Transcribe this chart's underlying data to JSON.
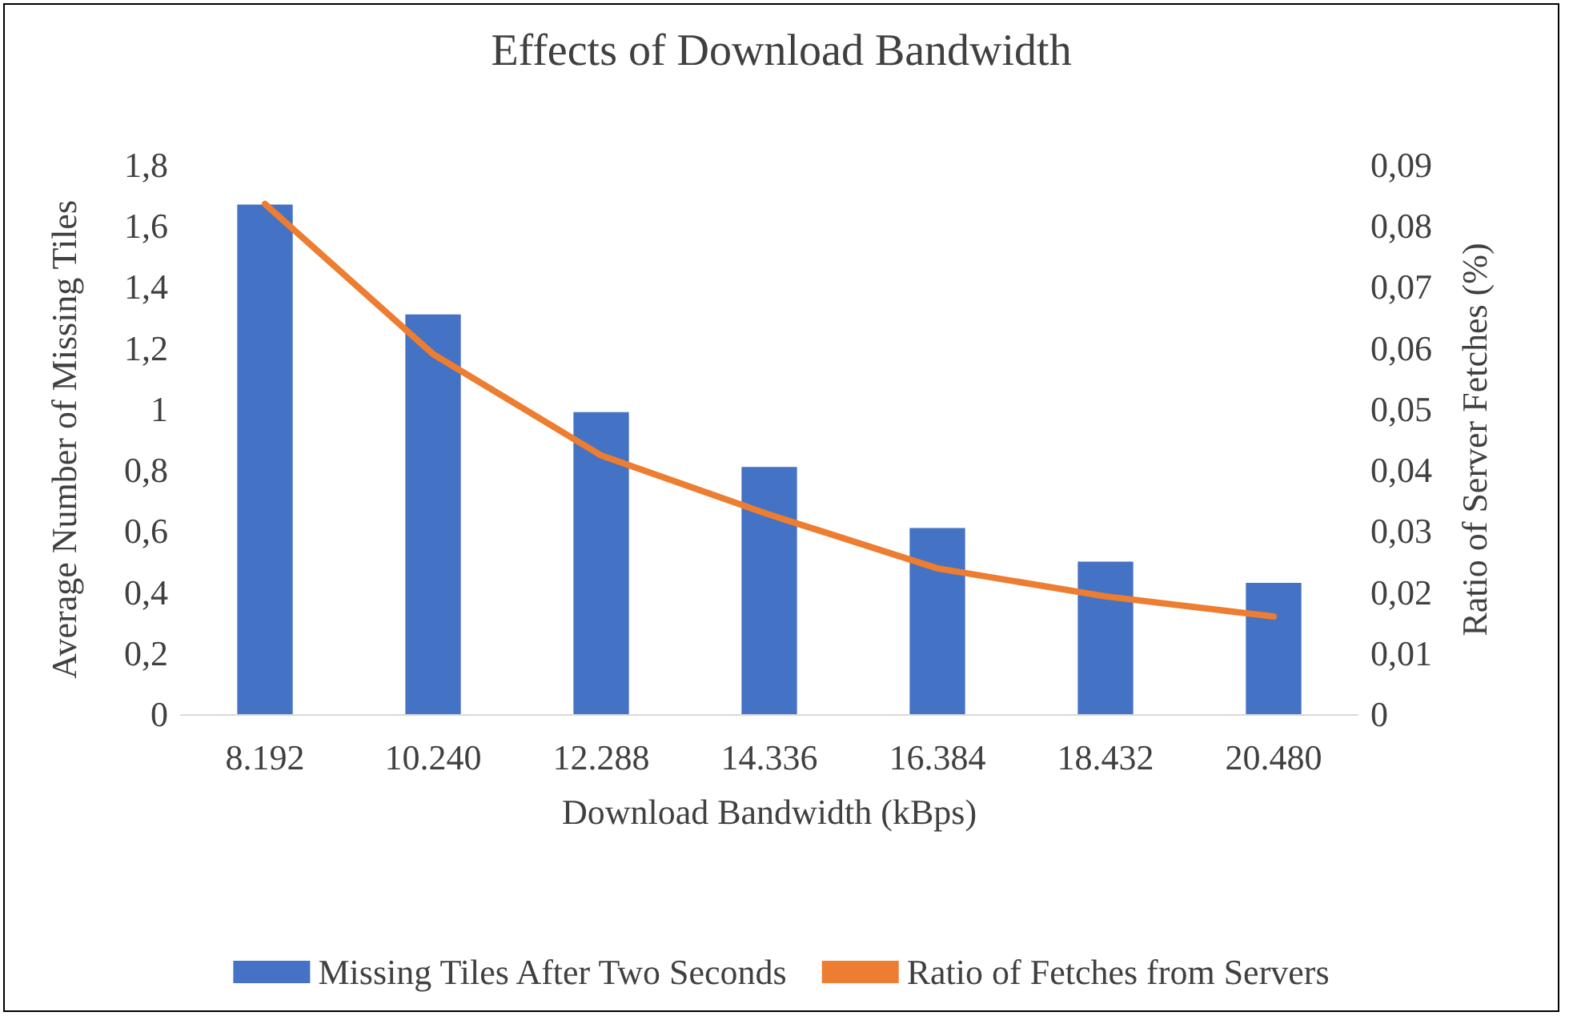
{
  "chart_data": {
    "type": "bar",
    "title": "Effects of Download Bandwidth",
    "xlabel": "Download Bandwidth (kBps)",
    "ylabel": "Average Number of Missing Tiles",
    "y2label": "Ratio of Server Fetches (%)",
    "categories": [
      "8.192",
      "10.240",
      "12.288",
      "14.336",
      "16.384",
      "18.432",
      "20.480"
    ],
    "series": [
      {
        "name": "Missing Tiles After Two Seconds",
        "color": "#4472c4",
        "values": [
          1.67,
          1.31,
          0.99,
          0.81,
          0.61,
          0.5,
          0.43
        ]
      },
      {
        "name": "Ratio of Fetches from Servers",
        "type": "line",
        "axis": "y2",
        "color": "#ed7d31",
        "values": [
          0.0836,
          0.059,
          0.0424,
          0.0327,
          0.0239,
          0.0193,
          0.016
        ]
      }
    ],
    "ylim": [
      0,
      1.8
    ],
    "yticks": [
      {
        "value": 0,
        "label": "0"
      },
      {
        "value": 0.2,
        "label": "0,2"
      },
      {
        "value": 0.4,
        "label": "0,4"
      },
      {
        "value": 0.6,
        "label": "0,6"
      },
      {
        "value": 0.8,
        "label": "0,8"
      },
      {
        "value": 1,
        "label": "1"
      },
      {
        "value": 1.2,
        "label": "1,2"
      },
      {
        "value": 1.4,
        "label": "1,4"
      },
      {
        "value": 1.6,
        "label": "1,6"
      },
      {
        "value": 1.8,
        "label": "1,8"
      }
    ],
    "y2lim": [
      0,
      0.09
    ],
    "y2ticks": [
      {
        "value": 0,
        "label": "0"
      },
      {
        "value": 0.01,
        "label": "0,01"
      },
      {
        "value": 0.02,
        "label": "0,02"
      },
      {
        "value": 0.03,
        "label": "0,03"
      },
      {
        "value": 0.04,
        "label": "0,04"
      },
      {
        "value": 0.05,
        "label": "0,05"
      },
      {
        "value": 0.06,
        "label": "0,06"
      },
      {
        "value": 0.07,
        "label": "0,07"
      },
      {
        "value": 0.08,
        "label": "0,08"
      },
      {
        "value": 0.09,
        "label": "0,09"
      }
    ],
    "grid": false,
    "legend": "bottom",
    "marker": "none"
  }
}
